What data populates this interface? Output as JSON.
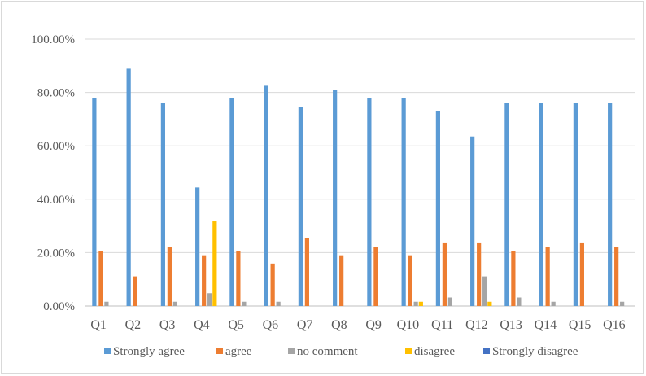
{
  "chart_data": {
    "type": "bar",
    "categories": [
      "Q1",
      "Q2",
      "Q3",
      "Q4",
      "Q5",
      "Q6",
      "Q7",
      "Q8",
      "Q9",
      "Q10",
      "Q11",
      "Q12",
      "Q13",
      "Q14",
      "Q15",
      "Q16"
    ],
    "series": [
      {
        "name": "Strongly agree",
        "color": "#5B9BD5",
        "values": [
          77.8,
          88.9,
          76.2,
          44.4,
          77.8,
          82.5,
          74.6,
          81.0,
          77.8,
          77.8,
          73.0,
          63.5,
          76.2,
          76.2,
          76.2,
          76.2
        ]
      },
      {
        "name": "agree",
        "color": "#ED7D31",
        "values": [
          20.6,
          11.1,
          22.2,
          19.0,
          20.6,
          15.9,
          25.4,
          19.0,
          22.2,
          19.0,
          23.8,
          23.8,
          20.6,
          22.2,
          23.8,
          22.2
        ]
      },
      {
        "name": "no comment",
        "color": "#A5A5A5",
        "values": [
          1.6,
          0,
          1.6,
          4.8,
          1.6,
          1.6,
          0,
          0,
          0,
          1.6,
          3.2,
          11.1,
          3.2,
          1.6,
          0,
          1.6
        ]
      },
      {
        "name": "disagree",
        "color": "#FFC000",
        "values": [
          0,
          0,
          0,
          31.7,
          0,
          0,
          0,
          0,
          0,
          1.6,
          0,
          1.6,
          0,
          0,
          0,
          0
        ]
      },
      {
        "name": "Strongly disagree",
        "color": "#4472C4",
        "values": [
          0,
          0,
          0,
          0,
          0,
          0,
          0,
          0,
          0,
          0,
          0,
          0,
          0,
          0,
          0,
          0
        ]
      }
    ],
    "yticks": [
      "0.00%",
      "20.00%",
      "40.00%",
      "60.00%",
      "80.00%",
      "100.00%"
    ],
    "ylim": [
      0,
      100
    ],
    "grid": true,
    "legend": "bottom"
  }
}
